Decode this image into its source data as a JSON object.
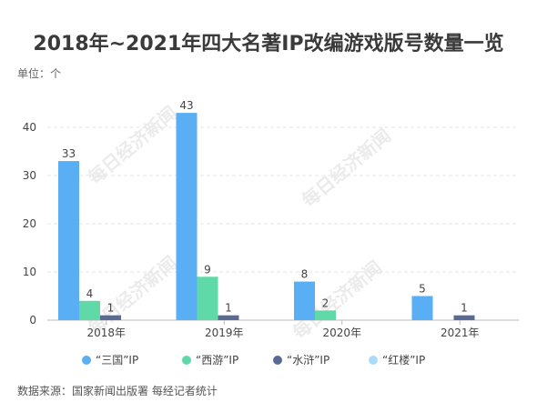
{
  "title": "2018年~2021年四大名著IP改编游戏版号数量一览",
  "unit": "单位：个",
  "source": "数据来源：国家新闻出版署 每经记者统计",
  "watermark": "每日经济新闻",
  "chart_data": {
    "type": "bar",
    "title": "2018年~2021年四大名著IP改编游戏版号数量一览",
    "ylabel": "单位：个",
    "xlabel": "",
    "categories": [
      "2018年",
      "2019年",
      "2020年",
      "2021年"
    ],
    "ylim": [
      0,
      45
    ],
    "yticks": [
      0,
      10,
      20,
      30,
      40
    ],
    "grid": true,
    "legend_position": "bottom",
    "series": [
      {
        "name": "“三国”IP",
        "color": "#5aaef4",
        "values": [
          33,
          43,
          8,
          5
        ]
      },
      {
        "name": "“西游”IP",
        "color": "#5fd9a8",
        "values": [
          4,
          9,
          2,
          null
        ]
      },
      {
        "name": "“水浒”IP",
        "color": "#5a6b93",
        "values": [
          1,
          1,
          null,
          1
        ]
      },
      {
        "name": "“红楼”IP",
        "color": "#a9dcfa",
        "values": [
          null,
          null,
          null,
          null
        ]
      }
    ]
  }
}
